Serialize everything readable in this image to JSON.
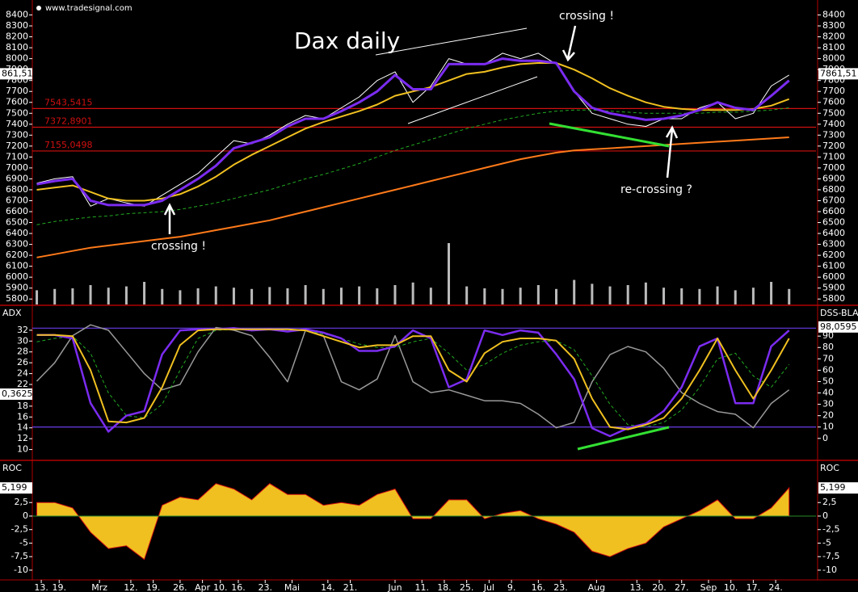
{
  "chart_data": [
    {
      "type": "line",
      "title": "Dax daily",
      "source": "www.tradesignal.com",
      "annotations": [
        "crossing !",
        "crossing !",
        "re-crossing ?"
      ],
      "x": [
        0,
        4,
        8,
        12,
        16,
        20,
        24,
        28,
        32,
        36,
        40,
        44,
        48,
        52,
        56,
        60,
        64,
        68,
        72,
        76,
        80,
        84,
        88,
        92,
        96,
        100,
        104,
        108,
        112,
        116,
        120,
        124,
        128,
        132,
        136,
        140,
        144,
        148,
        152,
        156,
        160,
        164,
        168
      ],
      "xlim": [
        -1,
        174
      ],
      "ylim": [
        5750,
        8500
      ],
      "yticks": [
        5800,
        5900,
        6000,
        6100,
        6200,
        6300,
        6400,
        6500,
        6600,
        6700,
        6800,
        6900,
        7000,
        7100,
        7200,
        7300,
        7400,
        7500,
        7600,
        7700,
        7800,
        7900,
        8000,
        8100,
        8200,
        8300,
        8400
      ],
      "series": [
        {
          "color": "#ffffff",
          "width": 1,
          "values": [
            6860,
            6900,
            6920,
            6650,
            6720,
            6680,
            6650,
            6750,
            6850,
            6950,
            7100,
            7250,
            7220,
            7300,
            7400,
            7480,
            7450,
            7550,
            7650,
            7800,
            7880,
            7600,
            7750,
            8000,
            7950,
            7950,
            8050,
            8000,
            8050,
            7950,
            7700,
            7500,
            7450,
            7400,
            7380,
            7450,
            7450,
            7550,
            7600,
            7450,
            7500,
            7750,
            7850
          ]
        },
        {
          "color": "#ff7a1a",
          "width": 2,
          "values": [
            6180,
            6210,
            6240,
            6270,
            6290,
            6310,
            6330,
            6350,
            6370,
            6400,
            6430,
            6460,
            6490,
            6520,
            6560,
            6600,
            6640,
            6680,
            6720,
            6760,
            6800,
            6840,
            6880,
            6920,
            6960,
            7000,
            7040,
            7080,
            7110,
            7140,
            7160,
            7170,
            7180,
            7190,
            7200,
            7210,
            7220,
            7230,
            7240,
            7250,
            7260,
            7270,
            7280
          ]
        },
        {
          "color": "#22aa22",
          "width": 1,
          "dashed": true,
          "values": [
            6480,
            6510,
            6530,
            6550,
            6560,
            6580,
            6590,
            6600,
            6620,
            6650,
            6680,
            6720,
            6760,
            6800,
            6850,
            6900,
            6940,
            6990,
            7040,
            7100,
            7160,
            7210,
            7260,
            7310,
            7360,
            7400,
            7440,
            7470,
            7500,
            7520,
            7530,
            7530,
            7520,
            7510,
            7500,
            7500,
            7500,
            7500,
            7510,
            7510,
            7520,
            7530,
            7550
          ]
        },
        {
          "color": "#f0c020",
          "width": 2,
          "values": [
            6800,
            6820,
            6840,
            6780,
            6720,
            6700,
            6700,
            6720,
            6760,
            6830,
            6920,
            7030,
            7120,
            7200,
            7280,
            7360,
            7420,
            7470,
            7520,
            7580,
            7660,
            7700,
            7740,
            7800,
            7860,
            7880,
            7920,
            7950,
            7960,
            7960,
            7900,
            7820,
            7730,
            7660,
            7600,
            7560,
            7540,
            7530,
            7530,
            7530,
            7540,
            7570,
            7630
          ]
        },
        {
          "color": "#7b2cf0",
          "width": 3,
          "values": [
            6850,
            6880,
            6900,
            6700,
            6660,
            6660,
            6660,
            6700,
            6800,
            6900,
            7020,
            7180,
            7230,
            7280,
            7380,
            7450,
            7450,
            7520,
            7600,
            7700,
            7850,
            7720,
            7720,
            7950,
            7950,
            7950,
            8000,
            7980,
            7980,
            7960,
            7700,
            7550,
            7500,
            7470,
            7440,
            7450,
            7480,
            7530,
            7600,
            7550,
            7530,
            7660,
            7800
          ]
        }
      ],
      "volume": {
        "color": "#bbbbbb",
        "lim": [
          0,
          100
        ],
        "values": [
          22,
          24,
          25,
          30,
          26,
          28,
          35,
          24,
          22,
          25,
          28,
          26,
          24,
          27,
          25,
          30,
          24,
          26,
          28,
          25,
          30,
          34,
          26,
          95,
          28,
          25,
          24,
          26,
          30,
          24,
          38,
          32,
          28,
          30,
          34,
          26,
          25,
          24,
          28,
          22,
          26,
          35,
          24
        ]
      },
      "levels": [
        {
          "value": 7543.5415,
          "label": "7543,5415"
        },
        {
          "value": 7372.8901,
          "label": "7372,8901"
        },
        {
          "value": 7155.0498,
          "label": "7155,0498"
        }
      ],
      "level_color": "#d01010",
      "last": {
        "value": 7861.51,
        "label": "7861,51"
      },
      "last_left_label": "861,51"
    },
    {
      "type": "line",
      "y_label": "ADX",
      "y2_label": "DSS-BLA",
      "x": [
        0,
        4,
        8,
        12,
        16,
        20,
        24,
        28,
        32,
        36,
        40,
        44,
        48,
        52,
        56,
        60,
        64,
        68,
        72,
        76,
        80,
        84,
        88,
        92,
        96,
        100,
        104,
        108,
        112,
        116,
        120,
        124,
        128,
        132,
        136,
        140,
        144,
        148,
        152,
        156,
        160,
        164,
        168
      ],
      "xlim": [
        -1,
        174
      ],
      "ylim": [
        8.3,
        36.3
      ],
      "y2lim": [
        -17.9,
        115.7
      ],
      "yticks": [
        10,
        12,
        14,
        16,
        18,
        22,
        24,
        26,
        28,
        30,
        32
      ],
      "y2ticks": [
        0,
        10,
        20,
        30,
        40,
        50,
        60,
        70,
        80,
        90
      ],
      "y2_levels": [
        10,
        97
      ],
      "level_color": "#6a3de8",
      "series": [
        {
          "color": "#999999",
          "width": 1.5,
          "values": [
            22.6,
            26,
            31,
            33,
            32,
            28,
            24,
            21,
            22,
            28,
            32.5,
            32,
            31,
            27,
            22.5,
            32,
            31,
            22.5,
            21,
            23,
            31,
            22.5,
            20.5,
            21,
            20,
            19,
            19,
            18.5,
            16.5,
            14,
            15,
            22.5,
            27.5,
            29,
            28,
            25,
            20.5,
            18.5,
            17,
            16.5,
            14,
            18.5,
            21
          ]
        },
        {
          "color": "#22aa22",
          "width": 1,
          "dashed": true,
          "axis": "y2",
          "values": [
            85,
            88,
            90,
            75,
            40,
            20,
            18,
            30,
            60,
            88,
            95,
            96,
            96,
            96,
            96,
            95,
            92,
            88,
            83,
            80,
            80,
            85,
            88,
            75,
            60,
            65,
            75,
            82,
            85,
            86,
            78,
            55,
            30,
            12,
            10,
            14,
            25,
            45,
            70,
            75,
            55,
            45,
            65
          ]
        },
        {
          "color": "#7b2cf0",
          "width": 2.5,
          "axis": "y2",
          "values": [
            91,
            91,
            88,
            31,
            6,
            20,
            24,
            74,
            95,
            96,
            96,
            97,
            95,
            96,
            94,
            96,
            93,
            88,
            77,
            77,
            81,
            95,
            88,
            45,
            52,
            95,
            91,
            95,
            93,
            74,
            52,
            9,
            2,
            9,
            13,
            24,
            45,
            81,
            88,
            31,
            31,
            81,
            95
          ]
        },
        {
          "color": "#f0c020",
          "width": 2,
          "axis": "y2",
          "values": [
            91,
            91,
            90,
            60,
            15,
            14,
            18,
            45,
            82,
            95,
            96,
            96,
            96,
            96,
            96,
            95,
            90,
            85,
            80,
            82,
            82,
            90,
            90,
            60,
            50,
            75,
            85,
            88,
            88,
            86,
            70,
            35,
            10,
            8,
            12,
            18,
            35,
            60,
            88,
            60,
            35,
            60,
            88
          ]
        }
      ],
      "left_box_label": "0,3625",
      "last": {
        "value": 98.0595,
        "label": "98,0595",
        "axis": "y2"
      }
    },
    {
      "type": "area",
      "y_label": "ROC",
      "color": "#f0c020",
      "edge_color": "#d01010",
      "x": [
        0,
        4,
        8,
        12,
        16,
        20,
        24,
        28,
        32,
        36,
        40,
        44,
        48,
        52,
        56,
        60,
        64,
        68,
        72,
        76,
        80,
        84,
        88,
        92,
        96,
        100,
        104,
        108,
        112,
        116,
        120,
        124,
        128,
        132,
        136,
        140,
        144,
        148,
        152,
        156,
        160,
        164,
        168
      ],
      "xlim": [
        -1,
        174
      ],
      "ylim": [
        -11.5,
        10
      ],
      "yticks": [
        {
          "value": 2.5,
          "label": "2,5"
        },
        0,
        {
          "value": -2.5,
          "label": "-2,5"
        },
        -5,
        {
          "value": -7.5,
          "label": "-7,5"
        },
        -10
      ],
      "values": [
        2.5,
        2.5,
        1.5,
        -3,
        -6,
        -5.5,
        -8,
        2,
        3.5,
        3,
        6,
        5,
        3,
        6,
        4,
        4,
        2,
        2.5,
        2,
        4,
        5,
        -0.5,
        -0.5,
        3,
        3,
        -0.5,
        0.5,
        1,
        -0.5,
        -1.5,
        -3,
        -6.5,
        -7.5,
        -6,
        -5,
        -2,
        -0.5,
        1,
        3,
        -0.5,
        -0.5,
        1.5,
        5.2
      ],
      "last": {
        "value": 5.199,
        "label": "5,199"
      },
      "xticks": [
        {
          "value": 1,
          "label": "13."
        },
        {
          "value": 5,
          "label": "19."
        },
        {
          "value": 14,
          "label": "Mrz"
        },
        {
          "value": 21,
          "label": "12."
        },
        {
          "value": 26,
          "label": "19."
        },
        {
          "value": 32,
          "label": "26."
        },
        {
          "value": 37,
          "label": "Apr"
        },
        {
          "value": 41,
          "label": "10."
        },
        {
          "value": 45,
          "label": "16."
        },
        {
          "value": 51,
          "label": "23."
        },
        {
          "value": 57,
          "label": "Mai"
        },
        {
          "value": 65,
          "label": "14."
        },
        {
          "value": 70,
          "label": "21."
        },
        {
          "value": 80,
          "label": "Jun"
        },
        {
          "value": 86,
          "label": "11."
        },
        {
          "value": 91,
          "label": "18."
        },
        {
          "value": 96,
          "label": "25."
        },
        {
          "value": 101,
          "label": "Jul"
        },
        {
          "value": 106,
          "label": "9."
        },
        {
          "value": 112,
          "label": "16."
        },
        {
          "value": 117,
          "label": "23."
        },
        {
          "value": 125,
          "label": "Aug"
        },
        {
          "value": 134,
          "label": "13."
        },
        {
          "value": 139,
          "label": "20."
        },
        {
          "value": 144,
          "label": "27."
        },
        {
          "value": 150,
          "label": "Sep"
        },
        {
          "value": 155,
          "label": "10."
        },
        {
          "value": 160,
          "label": "17."
        },
        {
          "value": 165,
          "label": "24."
        }
      ]
    }
  ]
}
